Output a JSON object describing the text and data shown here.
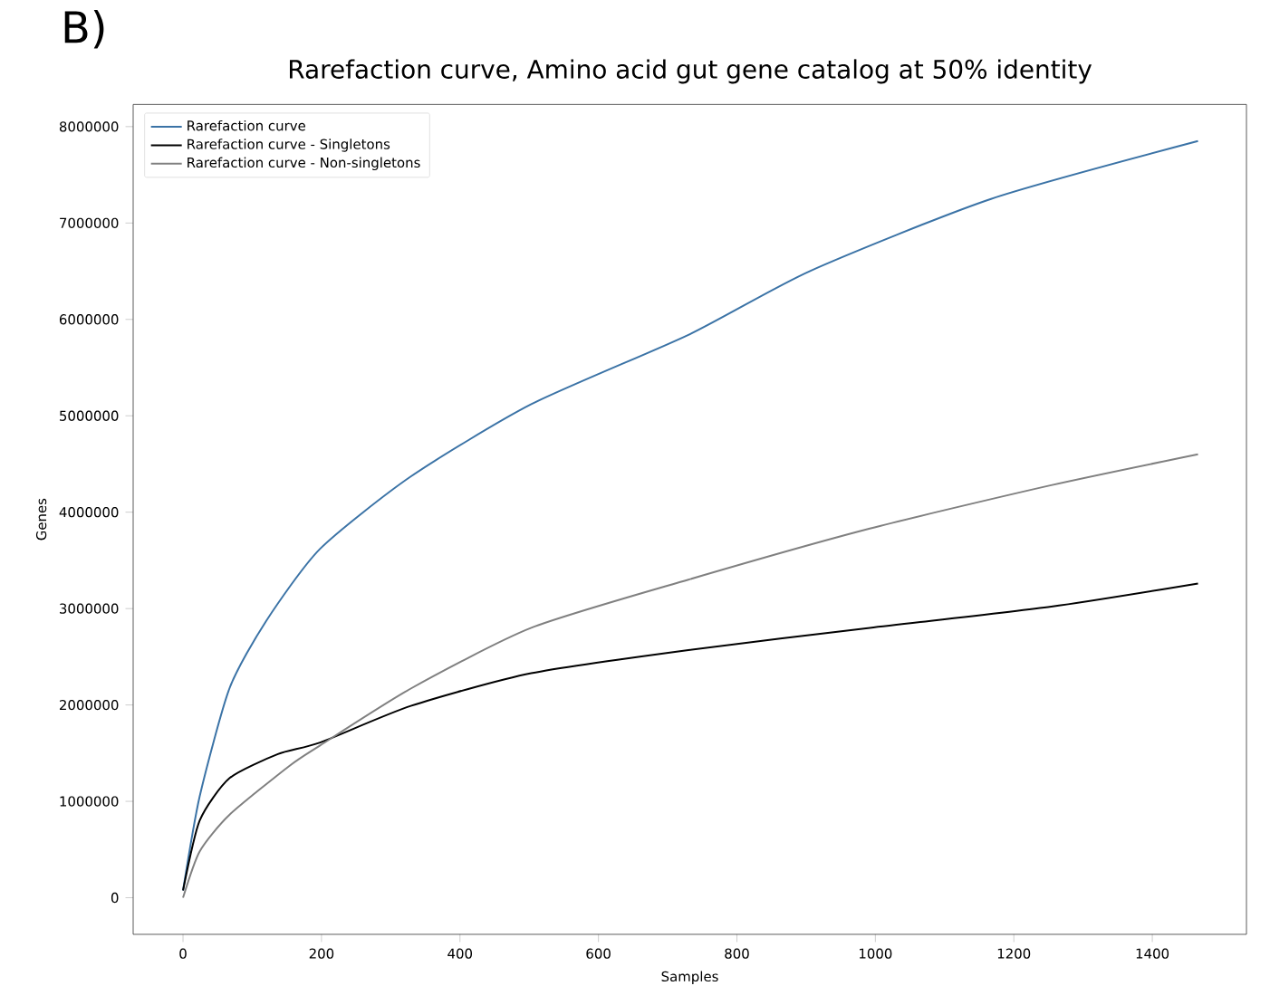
{
  "chart_data": {
    "type": "line",
    "title": "Rarefaction curve, Amino acid gut gene catalog at 50% identity",
    "xlabel": "Samples",
    "ylabel": "Genes",
    "annotations": [
      "B)"
    ],
    "xlim": [
      -72,
      1536
    ],
    "ylim": [
      -380000,
      8230000
    ],
    "xticks": [
      0,
      200,
      400,
      600,
      800,
      1000,
      1200,
      1400
    ],
    "yticks": [
      0,
      1000000,
      2000000,
      3000000,
      4000000,
      5000000,
      6000000,
      7000000,
      8000000
    ],
    "grid": false,
    "legend": "top left",
    "marker": "none",
    "line_style": "solid",
    "x": [
      0,
      24,
      67,
      120,
      198,
      329,
      503,
      730,
      905,
      1167,
      1466
    ],
    "series": [
      {
        "name": "Rarefaction curve",
        "color": "#3b73a6",
        "values": [
          75000,
          1050000,
          2170000,
          2870000,
          3620000,
          4370000,
          5120000,
          5840000,
          6500000,
          7250000,
          7850000
        ]
      },
      {
        "name": "Rarefaction curve - Singletons",
        "color": "#000000",
        "x": [
          0,
          24,
          67,
          137,
          198,
          329,
          503,
          730,
          992,
          1254,
          1466
        ],
        "values": [
          75000,
          800000,
          1240000,
          1490000,
          1610000,
          1990000,
          2330000,
          2570000,
          2800000,
          3020000,
          3260000
        ]
      },
      {
        "name": "Rarefaction curve - Non-singletons",
        "color": "#808080",
        "x": [
          0,
          24,
          67,
          154,
          198,
          329,
          503,
          730,
          992,
          1254,
          1466
        ],
        "values": [
          0,
          480000,
          860000,
          1370000,
          1580000,
          2170000,
          2800000,
          3300000,
          3830000,
          4280000,
          4600000
        ]
      }
    ]
  }
}
